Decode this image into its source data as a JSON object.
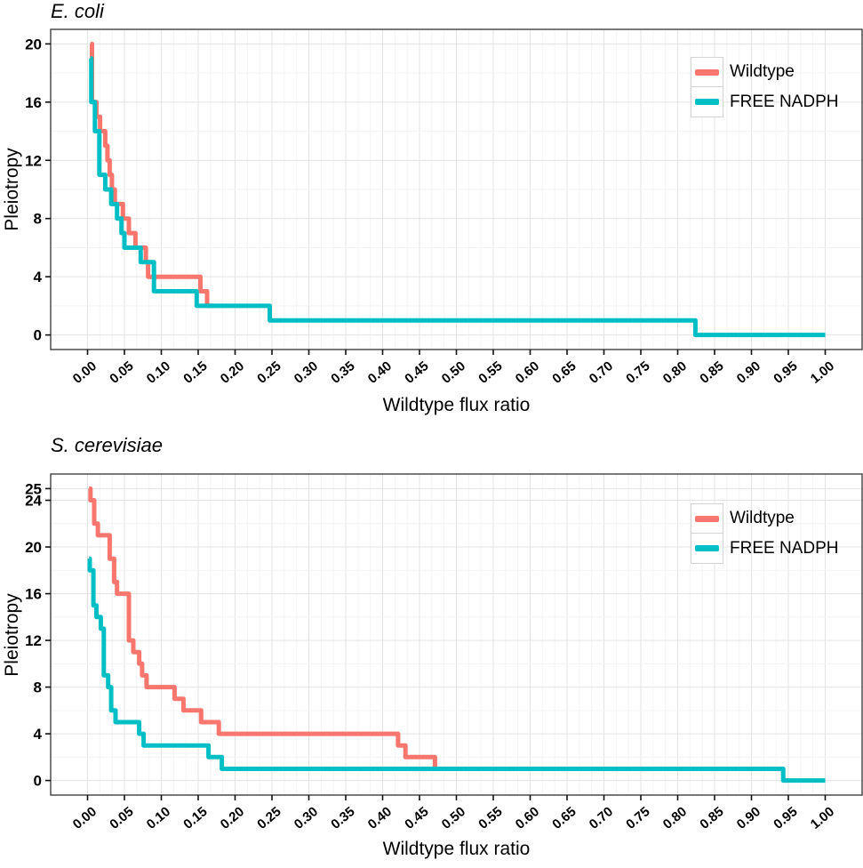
{
  "page": {
    "background": "#ffffff"
  },
  "legend": {
    "position": "top-right-inside",
    "items": [
      {
        "label": "Wildtype",
        "color": "#F8766D"
      },
      {
        "label": "FREE NADPH",
        "color": "#00BFC4"
      }
    ]
  },
  "chart_data": [
    {
      "type": "line",
      "subtype": "step",
      "title": "E. coli",
      "xlabel": "Wildtype flux ratio",
      "ylabel": "Pleiotropy",
      "xlim": [
        0,
        1
      ],
      "ylim": [
        0,
        20
      ],
      "grid": "major and minor, light gray on white panel, dark panel border",
      "x_tick_values": [
        0,
        0.05,
        0.1,
        0.15,
        0.2,
        0.25,
        0.3,
        0.35,
        0.4,
        0.45,
        0.5,
        0.55,
        0.6,
        0.65,
        0.7,
        0.75,
        0.8,
        0.85,
        0.9,
        0.95,
        1.0
      ],
      "x_tick_labels": [
        "0.00",
        "0.05",
        "0.10",
        "0.15",
        "0.20",
        "0.25",
        "0.30",
        "0.35",
        "0.40",
        "0.45",
        "0.50",
        "0.55",
        "0.60",
        "0.65",
        "0.70",
        "0.75",
        "0.80",
        "0.85",
        "0.90",
        "0.95",
        "1.00"
      ],
      "y_ticks": [
        0,
        4,
        8,
        12,
        16,
        20
      ],
      "series": [
        {
          "name": "Wildtype",
          "color": "#F8766D",
          "end_x": 0.172,
          "points": [
            [
              0.004,
              20
            ],
            [
              0.006,
              16
            ],
            [
              0.012,
              15
            ],
            [
              0.017,
              14
            ],
            [
              0.024,
              13
            ],
            [
              0.027,
              12
            ],
            [
              0.03,
              11
            ],
            [
              0.033,
              10
            ],
            [
              0.037,
              9
            ],
            [
              0.048,
              8
            ],
            [
              0.056,
              7
            ],
            [
              0.065,
              6
            ],
            [
              0.079,
              5
            ],
            [
              0.082,
              4
            ],
            [
              0.153,
              3
            ],
            [
              0.162,
              2
            ]
          ]
        },
        {
          "name": "FREE NADPH",
          "color": "#00BFC4",
          "end_x": 1.0,
          "points": [
            [
              0.004,
              19
            ],
            [
              0.005,
              16
            ],
            [
              0.01,
              14
            ],
            [
              0.016,
              11
            ],
            [
              0.024,
              10
            ],
            [
              0.032,
              9
            ],
            [
              0.04,
              8
            ],
            [
              0.046,
              7
            ],
            [
              0.05,
              6
            ],
            [
              0.072,
              5
            ],
            [
              0.09,
              3
            ],
            [
              0.148,
              2
            ],
            [
              0.247,
              1
            ],
            [
              0.824,
              0
            ]
          ]
        }
      ]
    },
    {
      "type": "line",
      "subtype": "step",
      "title": "S. cerevisiae",
      "xlabel": "Wildtype flux ratio",
      "ylabel": "Pleiotropy",
      "xlim": [
        0,
        1
      ],
      "ylim": [
        0,
        25
      ],
      "grid": "major and minor, light gray on white panel, dark panel border",
      "x_tick_values": [
        0,
        0.05,
        0.1,
        0.15,
        0.2,
        0.25,
        0.3,
        0.35,
        0.4,
        0.45,
        0.5,
        0.55,
        0.6,
        0.65,
        0.7,
        0.75,
        0.8,
        0.85,
        0.9,
        0.95,
        1.0
      ],
      "x_tick_labels": [
        "0.00",
        "0.05",
        "0.10",
        "0.15",
        "0.20",
        "0.25",
        "0.30",
        "0.35",
        "0.40",
        "0.45",
        "0.50",
        "0.55",
        "0.60",
        "0.65",
        "0.70",
        "0.75",
        "0.80",
        "0.85",
        "0.90",
        "0.95",
        "1.00"
      ],
      "y_ticks": [
        0,
        4,
        8,
        12,
        16,
        20,
        24,
        25
      ],
      "series": [
        {
          "name": "Wildtype",
          "color": "#F8766D",
          "end_x": 0.475,
          "points": [
            [
              0.002,
              25
            ],
            [
              0.004,
              24
            ],
            [
              0.009,
              22
            ],
            [
              0.014,
              21
            ],
            [
              0.03,
              19
            ],
            [
              0.036,
              17
            ],
            [
              0.04,
              16
            ],
            [
              0.056,
              12
            ],
            [
              0.062,
              11
            ],
            [
              0.07,
              10
            ],
            [
              0.074,
              9
            ],
            [
              0.08,
              8
            ],
            [
              0.118,
              7
            ],
            [
              0.13,
              6
            ],
            [
              0.154,
              5
            ],
            [
              0.178,
              4
            ],
            [
              0.421,
              3
            ],
            [
              0.431,
              2
            ],
            [
              0.471,
              1
            ]
          ]
        },
        {
          "name": "FREE NADPH",
          "color": "#00BFC4",
          "end_x": 1.0,
          "points": [
            [
              0.002,
              19
            ],
            [
              0.003,
              18
            ],
            [
              0.008,
              15
            ],
            [
              0.012,
              14
            ],
            [
              0.018,
              13
            ],
            [
              0.022,
              9
            ],
            [
              0.028,
              8
            ],
            [
              0.032,
              6
            ],
            [
              0.038,
              5
            ],
            [
              0.07,
              4
            ],
            [
              0.076,
              3
            ],
            [
              0.164,
              2
            ],
            [
              0.182,
              1
            ],
            [
              0.943,
              0
            ]
          ]
        }
      ]
    }
  ]
}
